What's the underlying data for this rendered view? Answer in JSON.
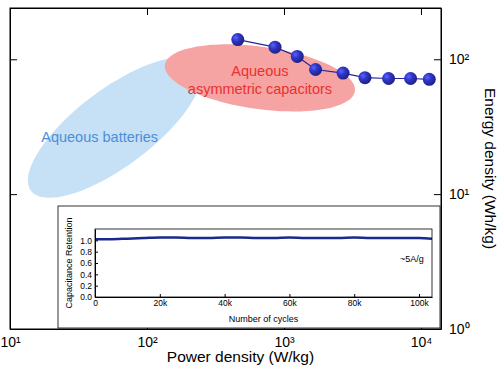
{
  "chart_data": [
    {
      "type": "line",
      "x_label": "Power density (W/kg)",
      "y_label": "Energy density (Wh/kg)",
      "log": true,
      "xlim": [
        10,
        14000
      ],
      "ylim": [
        1,
        240
      ],
      "xticks": [
        {
          "value": 10,
          "label": "10¹"
        },
        {
          "value": 100,
          "label": "10²"
        },
        {
          "value": 1000,
          "label": "10³"
        },
        {
          "value": 10000,
          "label": "10⁴"
        }
      ],
      "yticks": [
        {
          "value": 1,
          "label": "10⁰"
        },
        {
          "value": 10,
          "label": "10¹"
        },
        {
          "value": 100,
          "label": "10²"
        }
      ],
      "series": [
        {
          "color": "#2f35c8",
          "marker": "circle",
          "x": [
            460,
            860,
            1250,
            1700,
            2700,
            3900,
            5800,
            8400,
            11500
          ],
          "values": [
            140,
            123,
            105,
            84,
            79,
            73,
            72,
            72,
            71
          ]
        }
      ],
      "regions": [
        {
          "label": [
            "Aqueous batteries"
          ],
          "color": "#c6e0f5",
          "x": [
            13.5,
            250
          ],
          "y": [
            9.4,
            103
          ]
        },
        {
          "label": [
            "Aqueous",
            "asymmetric capacitors"
          ],
          "color": "#f5a3a3",
          "x": [
            135,
            3300
          ],
          "y": [
            41,
            129
          ]
        }
      ]
    },
    {
      "type": "line",
      "x_label": "Number of cycles",
      "y_label": "Capacitance Retention",
      "annotation": "~5A/g",
      "xlim": [
        0,
        104000
      ],
      "ylim": [
        0,
        1.2
      ],
      "xticks": [
        {
          "value": 0,
          "label": "0"
        },
        {
          "value": 20000,
          "label": "20k"
        },
        {
          "value": 40000,
          "label": "40k"
        },
        {
          "value": 60000,
          "label": "60k"
        },
        {
          "value": 80000,
          "label": "80k"
        },
        {
          "value": 100000,
          "label": "100k"
        }
      ],
      "yticks": [
        {
          "value": 0,
          "label": "0.0"
        },
        0.2,
        0.4,
        0.6,
        0.8,
        {
          "value": 1,
          "label": "1.0"
        }
      ],
      "series": [
        {
          "color": "#1a2a8c",
          "x": [
            0,
            5000,
            10000,
            15000,
            20000,
            25000,
            30000,
            35000,
            40000,
            45000,
            50000,
            55000,
            60000,
            65000,
            70000,
            75000,
            80000,
            85000,
            90000,
            95000,
            100000,
            104000
          ],
          "values": [
            1.02,
            1.02,
            1.03,
            1.04,
            1.05,
            1.05,
            1.04,
            1.04,
            1.05,
            1.05,
            1.04,
            1.04,
            1.05,
            1.04,
            1.04,
            1.04,
            1.05,
            1.04,
            1.04,
            1.04,
            1.04,
            1.03
          ]
        }
      ]
    }
  ]
}
